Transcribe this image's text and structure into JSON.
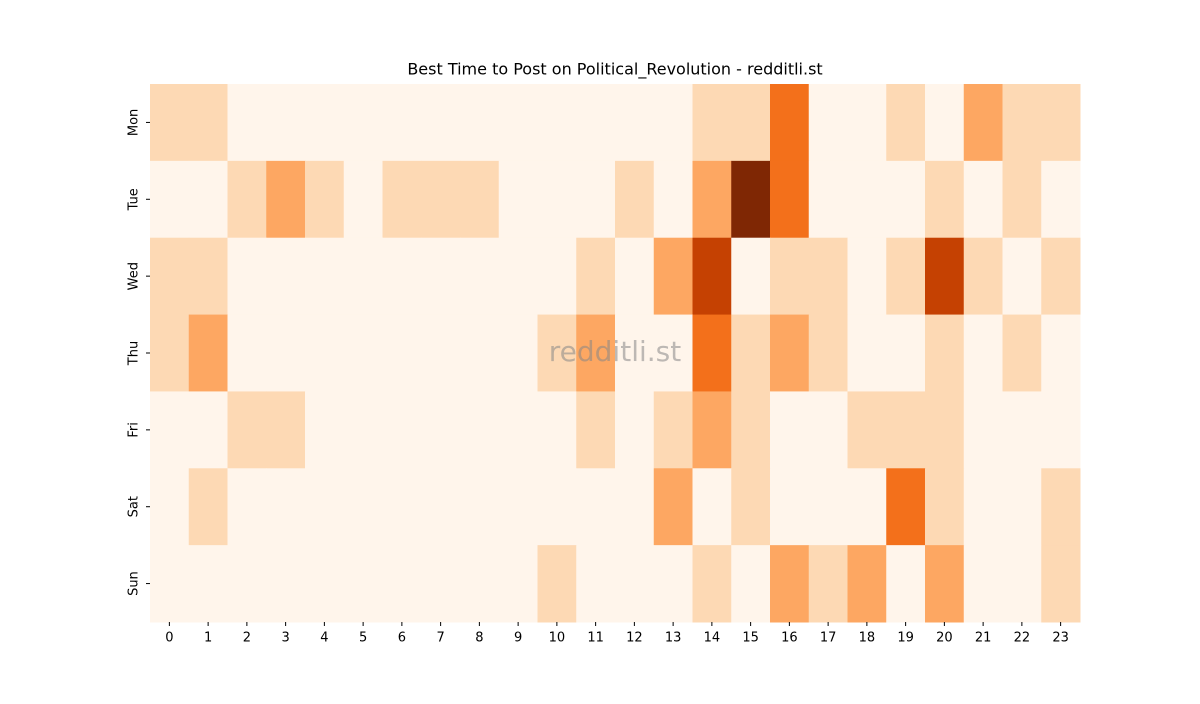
{
  "chart_data": {
    "type": "heatmap",
    "title": "Best Time to Post on Political_Revolution - redditli.st",
    "watermark": "redditli.st",
    "x": [
      0,
      1,
      2,
      3,
      4,
      5,
      6,
      7,
      8,
      9,
      10,
      11,
      12,
      13,
      14,
      15,
      16,
      17,
      18,
      19,
      20,
      21,
      22,
      23
    ],
    "y": [
      "Mon",
      "Tue",
      "Wed",
      "Thu",
      "Fri",
      "Sat",
      "Sun"
    ],
    "colormap": "Oranges",
    "values": [
      [
        1,
        1,
        0,
        0,
        0,
        0,
        0,
        0,
        0,
        0,
        0,
        0,
        0,
        0,
        1,
        1,
        3,
        0,
        0,
        1,
        0,
        2,
        1,
        1
      ],
      [
        0,
        0,
        1,
        2,
        1,
        0,
        1,
        1,
        1,
        0,
        0,
        0,
        1,
        0,
        2,
        5,
        3,
        0,
        0,
        0,
        1,
        0,
        1,
        0
      ],
      [
        1,
        1,
        0,
        0,
        0,
        0,
        0,
        0,
        0,
        0,
        0,
        1,
        0,
        2,
        4,
        0,
        1,
        1,
        0,
        1,
        4,
        1,
        0,
        1
      ],
      [
        1,
        2,
        0,
        0,
        0,
        0,
        0,
        0,
        0,
        0,
        1,
        2,
        0,
        0,
        3,
        1,
        2,
        1,
        0,
        0,
        1,
        0,
        1,
        0
      ],
      [
        0,
        0,
        1,
        1,
        0,
        0,
        0,
        0,
        0,
        0,
        0,
        1,
        0,
        1,
        2,
        1,
        0,
        0,
        1,
        1,
        1,
        0,
        0,
        0
      ],
      [
        0,
        1,
        0,
        0,
        0,
        0,
        0,
        0,
        0,
        0,
        0,
        0,
        0,
        2,
        0,
        1,
        0,
        0,
        0,
        3,
        1,
        0,
        0,
        1
      ],
      [
        0,
        0,
        0,
        0,
        0,
        0,
        0,
        0,
        0,
        0,
        1,
        0,
        0,
        0,
        1,
        0,
        2,
        1,
        2,
        0,
        2,
        0,
        0,
        1
      ]
    ]
  }
}
